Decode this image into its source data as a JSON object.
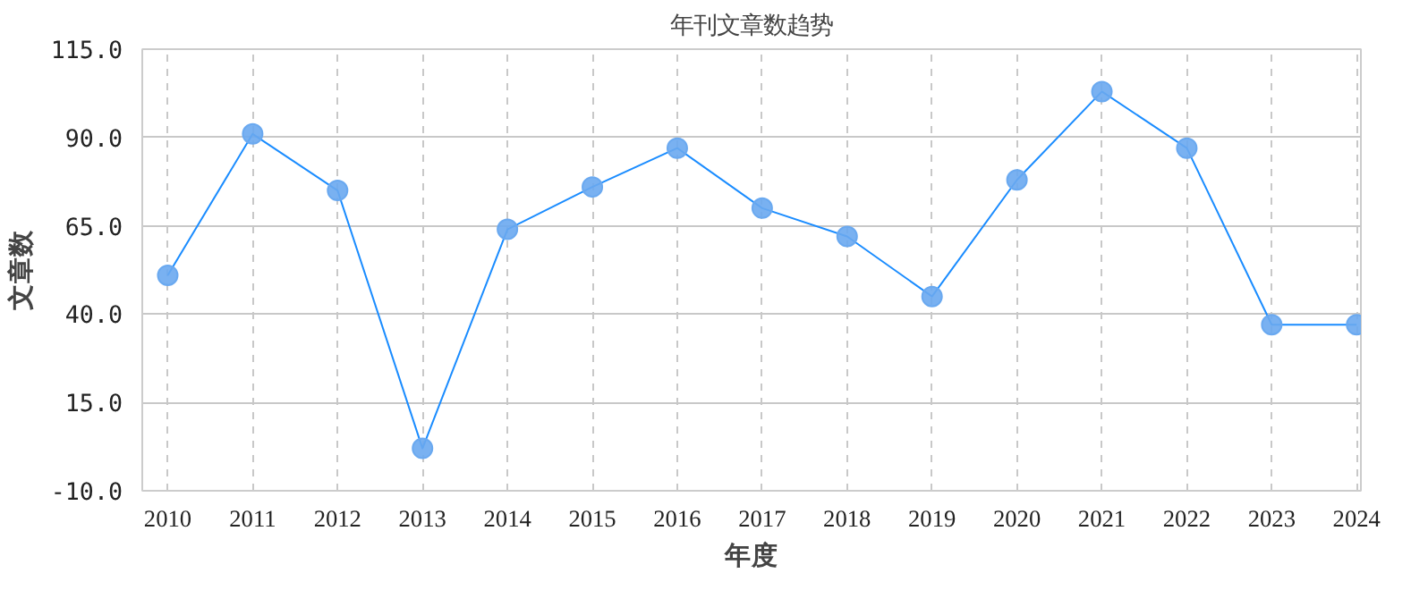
{
  "chart_data": {
    "type": "line",
    "title": "年刊文章数趋势",
    "xlabel": "年度",
    "ylabel": "文章数",
    "categories": [
      "2010",
      "2011",
      "2012",
      "2013",
      "2014",
      "2015",
      "2016",
      "2017",
      "2018",
      "2019",
      "2020",
      "2021",
      "2022",
      "2023",
      "2024"
    ],
    "series": [
      {
        "color": "#1a8cff",
        "values": [
          51,
          91,
          75,
          2,
          64,
          76,
          87,
          70,
          62,
          45,
          78,
          103,
          87,
          37,
          37
        ]
      }
    ],
    "ylim": [
      -10,
      115
    ],
    "yticks": [
      {
        "value": -10,
        "label": "-10.0"
      },
      {
        "value": 15,
        "label": "15.0"
      },
      {
        "value": 40,
        "label": "40.0"
      },
      {
        "value": 65,
        "label": "65.0"
      },
      {
        "value": 90,
        "label": "90.0"
      },
      {
        "value": 115,
        "label": "115.0"
      }
    ],
    "grid": true,
    "marker": "circle",
    "line_style": "solid"
  }
}
